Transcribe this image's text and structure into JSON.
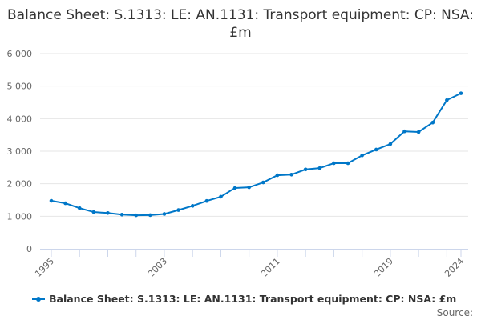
{
  "chart_data": {
    "type": "line",
    "title": "Balance Sheet: S.1313: LE: AN.1131: Transport equipment: CP: NSA: £m",
    "xlabel": "",
    "ylabel": "",
    "x": [
      1995,
      1996,
      1997,
      1998,
      1999,
      2000,
      2001,
      2002,
      2003,
      2004,
      2005,
      2006,
      2007,
      2008,
      2009,
      2010,
      2011,
      2012,
      2013,
      2014,
      2015,
      2016,
      2017,
      2018,
      2019,
      2020,
      2021,
      2022,
      2023,
      2024
    ],
    "series": [
      {
        "name": "Balance Sheet: S.1313: LE: AN.1131: Transport equipment: CP: NSA: £m",
        "values": [
          1475,
          1400,
          1250,
          1130,
          1100,
          1050,
          1030,
          1035,
          1070,
          1190,
          1320,
          1470,
          1600,
          1870,
          1890,
          2040,
          2260,
          2280,
          2440,
          2480,
          2630,
          2630,
          2870,
          3050,
          3220,
          3610,
          3590,
          3880,
          4570,
          4780
        ]
      }
    ],
    "ylim": [
      0,
      6000
    ],
    "yticks": [
      0,
      1000,
      2000,
      3000,
      4000,
      5000,
      6000
    ],
    "ytick_labels": [
      "0",
      "1 000",
      "2 000",
      "3 000",
      "4 000",
      "5 000",
      "6 000"
    ],
    "xtick_labels": [
      "1995",
      "2003",
      "2011",
      "2019",
      "2024"
    ],
    "grid": true,
    "legend": "bottom",
    "color": "#0077c8"
  },
  "source_label": "Source:"
}
